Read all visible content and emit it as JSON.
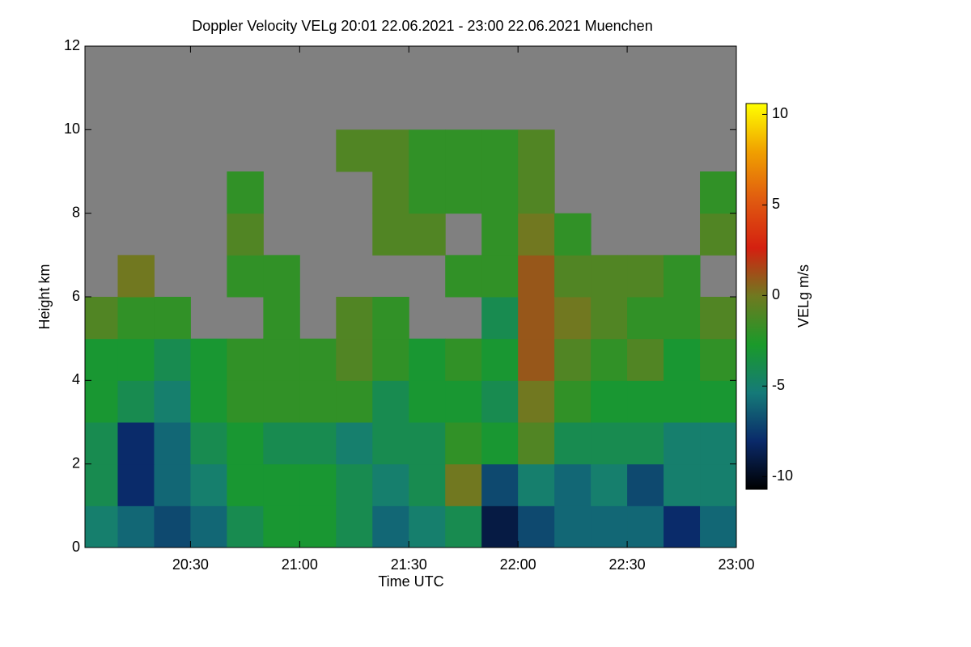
{
  "chart_data": {
    "type": "heatmap",
    "title": "Doppler Velocity VELg   20:01 22.06.2021 - 23:00 22.06.2021 Muenchen",
    "x_label": "Time UTC",
    "y_label": "Height km",
    "colorbar_label": "VELg m/s",
    "xbins": [
      1201,
      1210,
      1220,
      1230,
      1240,
      1250,
      1260,
      1270,
      1280,
      1290,
      1300,
      1310,
      1320,
      1330,
      1340,
      1350,
      1360,
      1370,
      1380
    ],
    "ybins": [
      0,
      1,
      2,
      3,
      4,
      5,
      6,
      7,
      8,
      9,
      10,
      11,
      12
    ],
    "values": [
      [
        -5,
        -6,
        -7,
        -6,
        -4,
        -3,
        -3,
        -4,
        -6,
        -5,
        -4,
        -9,
        -7,
        -6,
        -6,
        -6,
        -8,
        -6
      ],
      [
        -4,
        -8,
        -6,
        -5,
        -3,
        -3,
        -3,
        -4,
        -5,
        -4,
        0,
        -7,
        -5,
        -6,
        -5,
        -7,
        -5,
        -5
      ],
      [
        -4,
        -8,
        -6,
        -4,
        -3,
        -4,
        -4,
        -5,
        -4,
        -4,
        -2,
        -3,
        -1,
        -4,
        -4,
        -4,
        -5,
        -5
      ],
      [
        -3,
        -4,
        -5,
        -3,
        -2,
        -2,
        -2,
        -2,
        -4,
        -3,
        -3,
        -4,
        0,
        -2,
        -3,
        -3,
        -3,
        -3
      ],
      [
        -3,
        -3,
        -4,
        -3,
        -2,
        -2,
        -2,
        -1,
        -2,
        -3,
        -2,
        -3,
        1,
        -1,
        -2,
        -1,
        -3,
        -2
      ],
      [
        -1,
        -2,
        -2,
        null,
        null,
        -2,
        null,
        -1,
        -2,
        null,
        null,
        -4,
        1,
        0,
        -1,
        -2,
        -2,
        -1
      ],
      [
        null,
        0,
        null,
        null,
        -2,
        -2,
        null,
        null,
        null,
        null,
        -2,
        -2,
        1,
        -1,
        -1,
        -1,
        -2,
        null
      ],
      [
        null,
        null,
        null,
        null,
        -1,
        null,
        null,
        null,
        -1,
        -1,
        null,
        -2,
        0,
        -2,
        null,
        null,
        null,
        -1
      ],
      [
        null,
        null,
        null,
        null,
        -2,
        null,
        null,
        null,
        -1,
        -2,
        -2,
        -2,
        -1,
        null,
        null,
        null,
        null,
        -2
      ],
      [
        null,
        null,
        null,
        null,
        null,
        null,
        null,
        -1,
        -1,
        -2,
        -2,
        -2,
        -1,
        null,
        null,
        null,
        null,
        null
      ],
      [
        null,
        null,
        null,
        null,
        null,
        null,
        null,
        null,
        null,
        null,
        null,
        null,
        null,
        null,
        null,
        null,
        null,
        null
      ],
      [
        null,
        null,
        null,
        null,
        null,
        null,
        null,
        null,
        null,
        null,
        null,
        null,
        null,
        null,
        null,
        null,
        null,
        null
      ]
    ],
    "xlim": [
      1201,
      1380
    ],
    "xticks": [
      {
        "value": 1230,
        "label": "20:30"
      },
      {
        "value": 1260,
        "label": "21:00"
      },
      {
        "value": 1290,
        "label": "21:30"
      },
      {
        "value": 1320,
        "label": "22:00"
      },
      {
        "value": 1350,
        "label": "22:30"
      },
      {
        "value": 1380,
        "label": "23:00"
      }
    ],
    "ylim": [
      0,
      12
    ],
    "yticks": [
      0,
      2,
      4,
      6,
      8,
      10,
      12
    ],
    "clim": [
      -10.7,
      10.6
    ],
    "cticks": [
      -10,
      -5,
      0,
      5,
      10
    ],
    "colormap": [
      "#000000",
      "#0a2a6a",
      "#157a78",
      "#1a9a2a",
      "#6f7a20",
      "#d42010",
      "#e05a10",
      "#f0a000",
      "#ffff00"
    ],
    "missing_color": "#808080"
  }
}
